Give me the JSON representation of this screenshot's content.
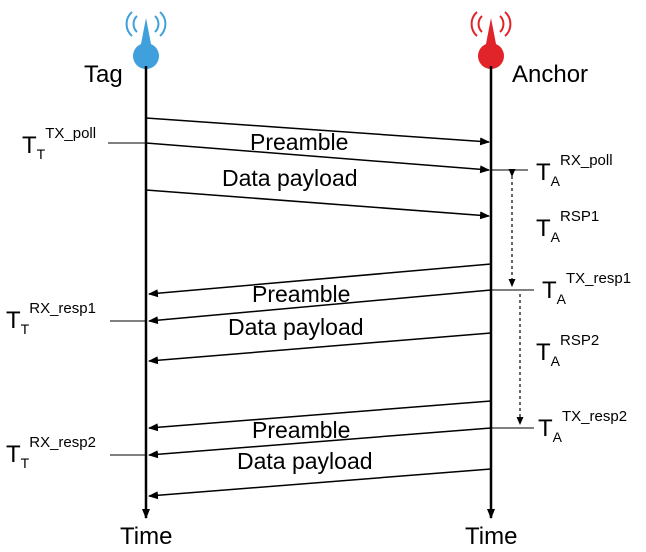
{
  "entities": {
    "tag": "Tag",
    "anchor": "Anchor",
    "time_label_left": "Time",
    "time_label_right": "Time"
  },
  "colors": {
    "tag": "#3fa0dc",
    "anchor": "#e0242a",
    "line": "#000000"
  },
  "icons": {
    "tag": "antenna-icon",
    "anchor": "antenna-icon"
  },
  "messages": {
    "m1_preamble": "Preamble",
    "m1_payload": "Data payload",
    "m2_preamble": "Preamble",
    "m2_payload": "Data payload",
    "m3_preamble": "Preamble",
    "m3_payload": "Data payload"
  },
  "timestamps": {
    "tt_tx_poll": {
      "main": "T",
      "sub": "T",
      "sup": "TX_poll"
    },
    "ta_rx_poll": {
      "main": "T",
      "sub": "A",
      "sup": "RX_poll"
    },
    "ta_rsp1": {
      "main": "T",
      "sub": "A",
      "sup": "RSP1"
    },
    "ta_tx_resp1": {
      "main": "T",
      "sub": "A",
      "sup": "TX_resp1"
    },
    "tt_rx_resp1": {
      "main": "T",
      "sub": "T",
      "sup": "RX_resp1"
    },
    "ta_rsp2": {
      "main": "T",
      "sub": "A",
      "sup": "RSP2"
    },
    "ta_tx_resp2": {
      "main": "T",
      "sub": "A",
      "sup": "TX_resp2"
    },
    "tt_rx_resp2": {
      "main": "T",
      "sub": "T",
      "sup": "RX_resp2"
    }
  }
}
